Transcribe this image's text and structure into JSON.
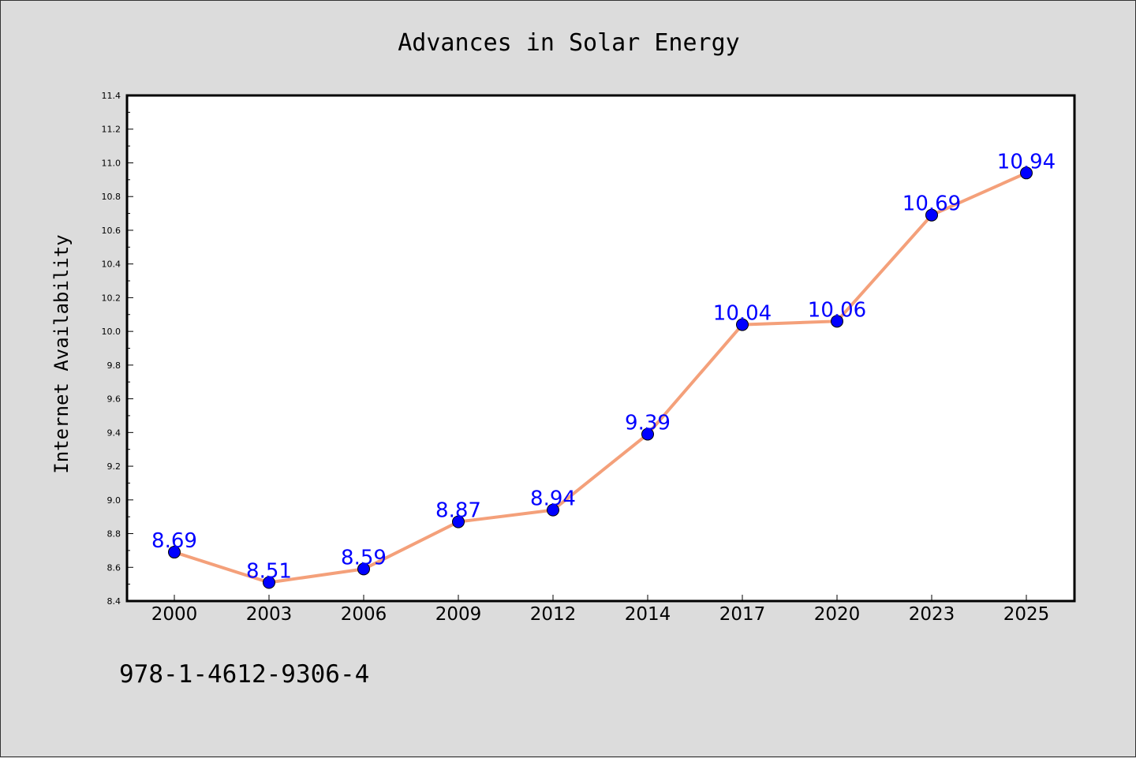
{
  "chart_data": {
    "type": "line",
    "title": "Advances in Solar Energy",
    "xlabel": "",
    "ylabel": "Internet Availability",
    "categories": [
      "2000",
      "2003",
      "2006",
      "2009",
      "2012",
      "2014",
      "2017",
      "2020",
      "2023",
      "2025"
    ],
    "series": [
      {
        "values": [
          8.69,
          8.51,
          8.59,
          8.87,
          8.94,
          9.39,
          10.04,
          10.06,
          10.69,
          10.94
        ],
        "data_labels": [
          "8.69",
          "8.51",
          "8.59",
          "8.87",
          "8.94",
          "9.39",
          "10.04",
          "10.06",
          "10.69",
          "10.94"
        ],
        "line_color": "#f4a07a",
        "marker_color": "#0000ff"
      }
    ],
    "ylim": [
      8.4,
      11.4
    ],
    "y_ticks": [
      "8.4",
      "8.6",
      "8.8",
      "9.0",
      "9.2",
      "9.4",
      "9.6",
      "9.8",
      "10.0",
      "10.2",
      "10.4",
      "10.6",
      "10.8",
      "11.0",
      "11.2",
      "11.4"
    ],
    "grid": false,
    "legend": "none",
    "data_label_color": "#0000ff",
    "background_color": "#dcdcdc",
    "plot_background_color": "#ffffff"
  },
  "footer_text": "978-1-4612-9306-4"
}
